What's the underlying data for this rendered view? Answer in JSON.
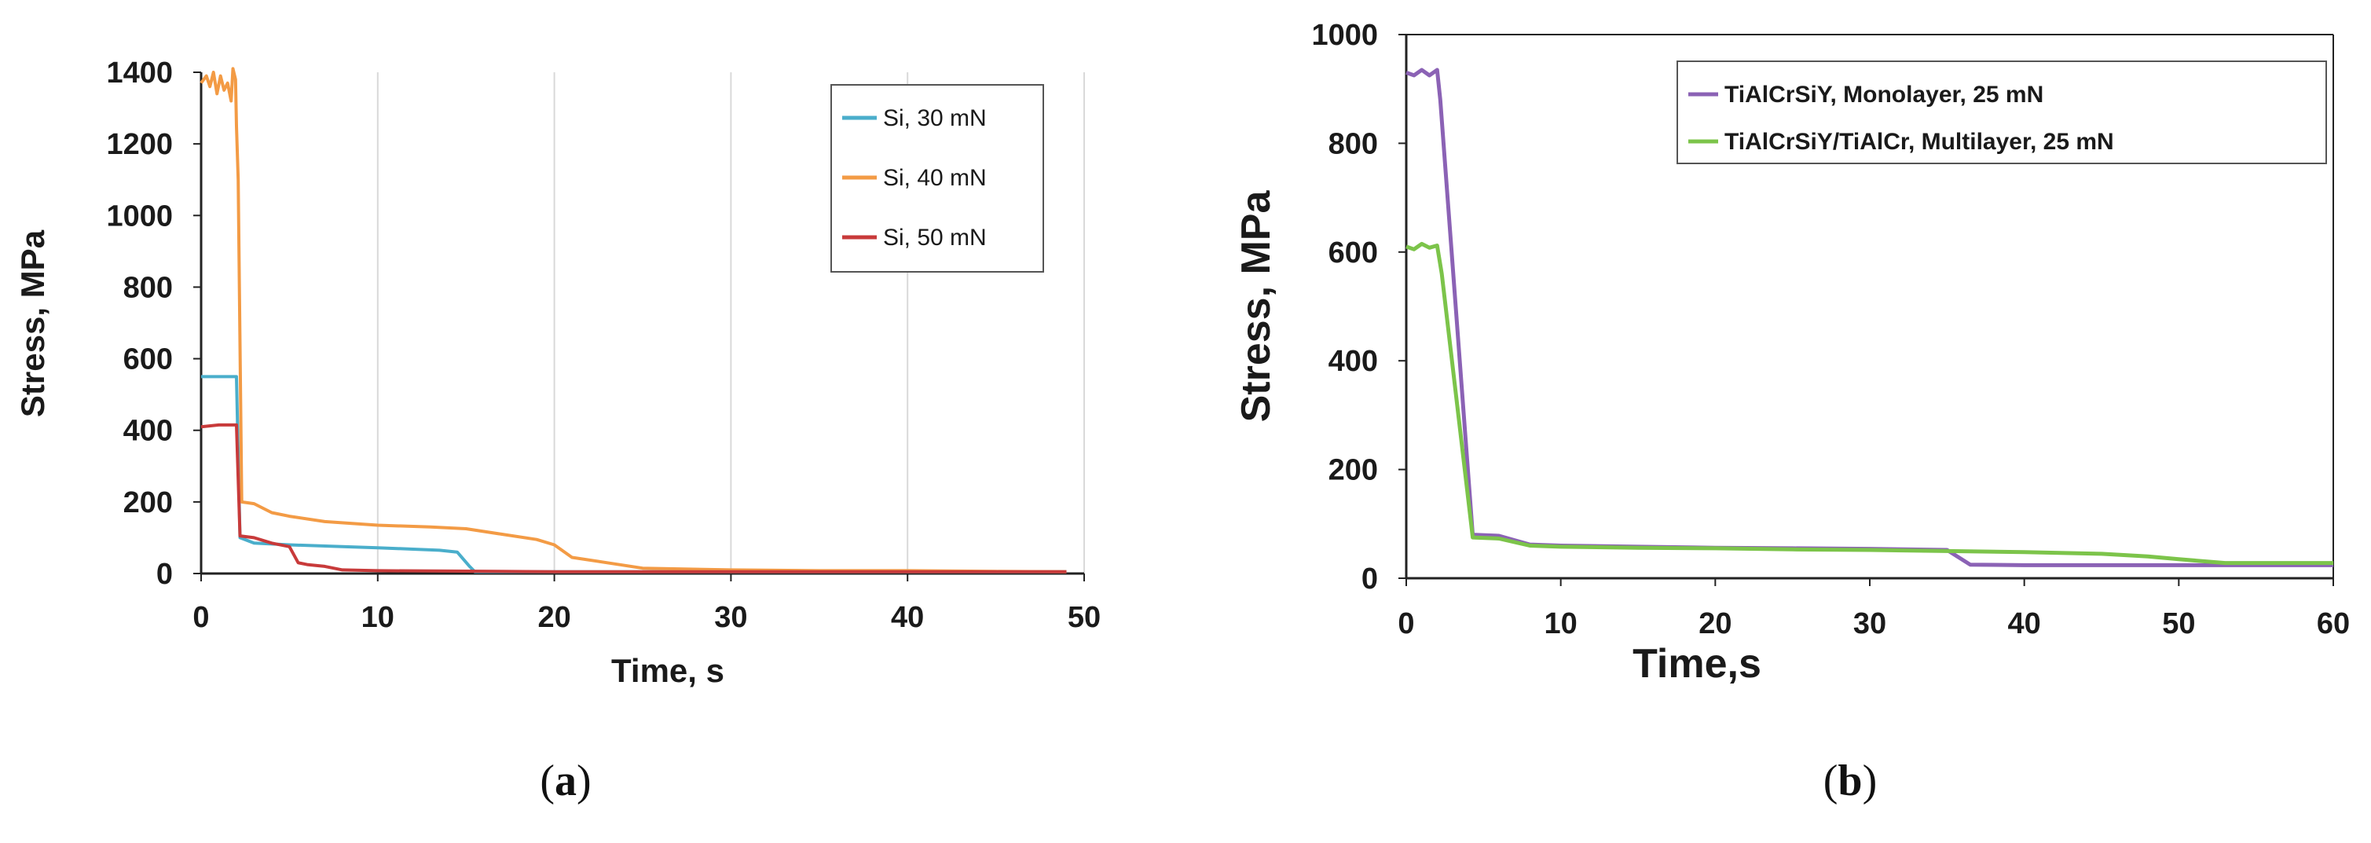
{
  "chart_data": [
    {
      "type": "line",
      "panel_label": "a",
      "xlabel": "Time, s",
      "ylabel": "Stress, MPa",
      "xlim": [
        0,
        50
      ],
      "ylim": [
        0,
        1400
      ],
      "xticks": [
        0,
        10,
        20,
        30,
        40,
        50
      ],
      "yticks": [
        0,
        200,
        400,
        600,
        800,
        1000,
        1200,
        1400
      ],
      "grid": "vertical",
      "legend_position": "top-right",
      "series": [
        {
          "name": "Si, 30 mN",
          "color": "#4aaecb",
          "points": [
            [
              0,
              550
            ],
            [
              1,
              550
            ],
            [
              2,
              550
            ],
            [
              2.2,
              100
            ],
            [
              3,
              85
            ],
            [
              5,
              80
            ],
            [
              8,
              75
            ],
            [
              10,
              72
            ],
            [
              12,
              68
            ],
            [
              13.5,
              65
            ],
            [
              14.5,
              60
            ],
            [
              15.2,
              20
            ],
            [
              15.5,
              5
            ],
            [
              20,
              5
            ],
            [
              30,
              5
            ],
            [
              40,
              5
            ],
            [
              49,
              5
            ]
          ]
        },
        {
          "name": "Si, 40 mN",
          "color": "#f39b45",
          "points": [
            [
              0,
              1370
            ],
            [
              0.3,
              1390
            ],
            [
              0.5,
              1360
            ],
            [
              0.7,
              1400
            ],
            [
              0.9,
              1340
            ],
            [
              1.1,
              1390
            ],
            [
              1.3,
              1350
            ],
            [
              1.5,
              1370
            ],
            [
              1.7,
              1320
            ],
            [
              1.8,
              1410
            ],
            [
              1.95,
              1380
            ],
            [
              2.0,
              1250
            ],
            [
              2.1,
              1100
            ],
            [
              2.3,
              200
            ],
            [
              3,
              195
            ],
            [
              4,
              170
            ],
            [
              5,
              160
            ],
            [
              7,
              145
            ],
            [
              10,
              135
            ],
            [
              13,
              130
            ],
            [
              15,
              125
            ],
            [
              17,
              110
            ],
            [
              19,
              95
            ],
            [
              20,
              80
            ],
            [
              21,
              45
            ],
            [
              23,
              30
            ],
            [
              25,
              15
            ],
            [
              30,
              10
            ],
            [
              35,
              8
            ],
            [
              40,
              8
            ],
            [
              45,
              6
            ],
            [
              49,
              5
            ]
          ]
        },
        {
          "name": "Si, 50 mN",
          "color": "#c83a3a",
          "points": [
            [
              0,
              410
            ],
            [
              1,
              415
            ],
            [
              2,
              415
            ],
            [
              2.2,
              105
            ],
            [
              3,
              100
            ],
            [
              4,
              85
            ],
            [
              5,
              75
            ],
            [
              5.5,
              30
            ],
            [
              6,
              25
            ],
            [
              7,
              20
            ],
            [
              8,
              10
            ],
            [
              10,
              8
            ],
            [
              20,
              5
            ],
            [
              30,
              5
            ],
            [
              40,
              5
            ],
            [
              49,
              5
            ]
          ]
        }
      ],
      "caption": [
        "(",
        "a",
        ")"
      ]
    },
    {
      "type": "line",
      "panel_label": "b",
      "xlabel": "Time,s",
      "ylabel": "Stress, MPa",
      "xlim": [
        0,
        60
      ],
      "ylim": [
        0,
        1000
      ],
      "xticks": [
        0,
        10,
        20,
        30,
        40,
        50,
        60
      ],
      "yticks": [
        0,
        200,
        400,
        600,
        800,
        1000
      ],
      "grid": "none",
      "legend_position": "top-right",
      "series": [
        {
          "name": "TiAlCrSiY, Monolayer, 25 mN",
          "color": "#8b62b5",
          "points": [
            [
              0,
              930
            ],
            [
              0.5,
              925
            ],
            [
              1,
              935
            ],
            [
              1.5,
              925
            ],
            [
              2,
              935
            ],
            [
              2.2,
              880
            ],
            [
              4.3,
              80
            ],
            [
              6,
              78
            ],
            [
              8,
              62
            ],
            [
              10,
              60
            ],
            [
              15,
              58
            ],
            [
              20,
              56
            ],
            [
              25,
              55
            ],
            [
              30,
              54
            ],
            [
              35,
              52
            ],
            [
              36.5,
              25
            ],
            [
              40,
              24
            ],
            [
              50,
              24
            ],
            [
              60,
              24
            ]
          ]
        },
        {
          "name": "TiAlCrSiY/TiAlCr, Multilayer, 25 mN",
          "color": "#7cc44a",
          "points": [
            [
              0,
              610
            ],
            [
              0.5,
              605
            ],
            [
              1,
              615
            ],
            [
              1.5,
              608
            ],
            [
              2,
              612
            ],
            [
              2.3,
              560
            ],
            [
              4.3,
              75
            ],
            [
              6,
              73
            ],
            [
              8,
              60
            ],
            [
              10,
              58
            ],
            [
              15,
              56
            ],
            [
              20,
              55
            ],
            [
              25,
              53
            ],
            [
              30,
              52
            ],
            [
              35,
              50
            ],
            [
              40,
              48
            ],
            [
              45,
              45
            ],
            [
              48,
              40
            ],
            [
              50,
              35
            ],
            [
              53,
              28
            ],
            [
              60,
              28
            ]
          ]
        }
      ],
      "caption": [
        "(",
        "b",
        ")"
      ]
    }
  ]
}
